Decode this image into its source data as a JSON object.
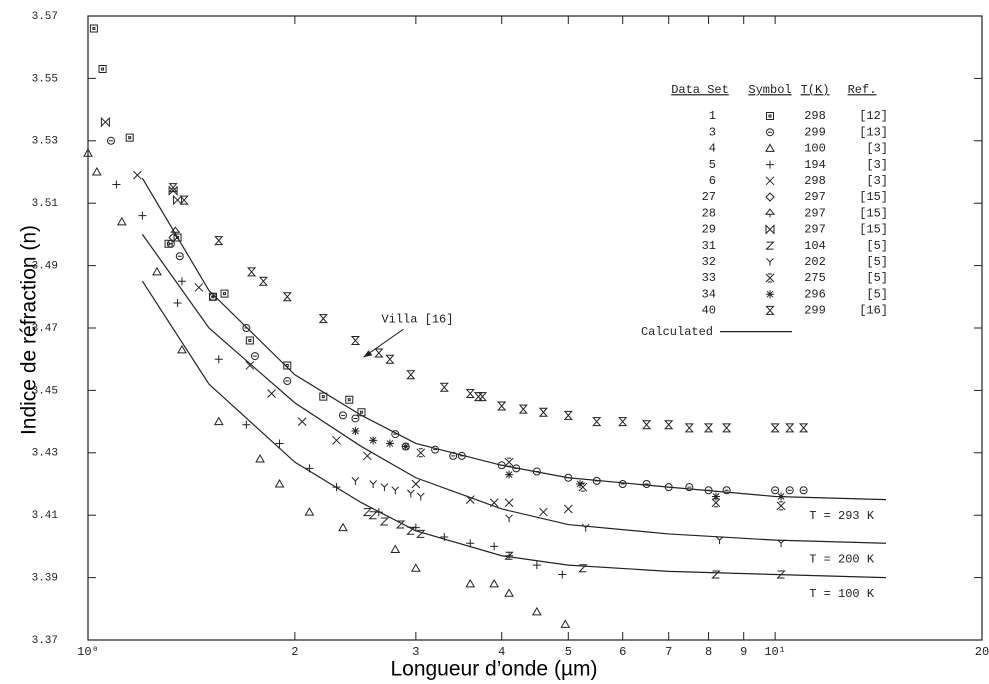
{
  "chart_data": {
    "type": "scatter",
    "x_label": "Longueur d’onde (µm)",
    "y_label": "Indice de réfraction (n)",
    "xlog": true,
    "xlim": [
      1,
      20
    ],
    "ylim": [
      3.37,
      3.57
    ],
    "xticks": [
      {
        "value": 1,
        "label": "10⁰"
      },
      2,
      3,
      4,
      5,
      6,
      7,
      8,
      9,
      {
        "value": 10,
        "label": "10¹"
      },
      20
    ],
    "yticks": [
      3.37,
      3.39,
      3.41,
      3.43,
      3.45,
      3.47,
      3.49,
      3.51,
      3.53,
      3.55,
      3.57
    ],
    "legend_headers": [
      "Data Set",
      "Symbol",
      "T(K)",
      "Ref."
    ],
    "series": [
      {
        "name": "1",
        "marker": "square",
        "T": 298,
        "ref": "[12]",
        "x": [
          1.02,
          1.05,
          1.15,
          1.31,
          1.35,
          1.52,
          1.58,
          1.72,
          1.95,
          2.2,
          2.4,
          2.5
        ],
        "values": [
          3.566,
          3.553,
          3.531,
          3.497,
          3.499,
          3.48,
          3.481,
          3.466,
          3.458,
          3.448,
          3.447,
          3.443
        ]
      },
      {
        "name": "3",
        "marker": "circle",
        "T": 299,
        "ref": "[13]",
        "x": [
          1.08,
          1.32,
          1.36,
          1.52,
          1.7,
          1.75,
          1.95,
          2.35,
          2.45,
          2.8,
          2.9,
          3.2,
          3.4,
          3.5,
          4.0,
          4.2,
          4.5,
          5.0,
          5.5,
          6.0,
          6.5,
          7.0,
          7.5,
          8.0,
          8.5,
          10,
          10.5,
          11
        ],
        "values": [
          3.53,
          3.497,
          3.493,
          3.48,
          3.47,
          3.461,
          3.453,
          3.442,
          3.441,
          3.436,
          3.432,
          3.431,
          3.429,
          3.429,
          3.426,
          3.425,
          3.424,
          3.422,
          3.421,
          3.42,
          3.42,
          3.419,
          3.419,
          3.418,
          3.418,
          3.418,
          3.418,
          3.418
        ]
      },
      {
        "name": "4",
        "marker": "triangle",
        "T": 100,
        "ref": "[3]",
        "x": [
          1.0,
          1.03,
          1.12,
          1.26,
          1.37,
          1.55,
          1.78,
          1.9,
          2.1,
          2.35,
          2.8,
          3.0,
          3.6,
          3.9,
          4.1,
          4.5,
          4.95
        ],
        "values": [
          3.526,
          3.52,
          3.504,
          3.488,
          3.463,
          3.44,
          3.428,
          3.42,
          3.411,
          3.406,
          3.399,
          3.393,
          3.388,
          3.388,
          3.385,
          3.379,
          3.375
        ]
      },
      {
        "name": "5",
        "marker": "plus",
        "T": 194,
        "ref": "[3]",
        "x": [
          1.1,
          1.2,
          1.35,
          1.37,
          1.55,
          1.7,
          1.9,
          2.1,
          2.3,
          2.65,
          3.0,
          3.3,
          3.6,
          3.9,
          4.1,
          4.5,
          4.9
        ],
        "values": [
          3.516,
          3.506,
          3.478,
          3.485,
          3.46,
          3.439,
          3.433,
          3.425,
          3.419,
          3.411,
          3.406,
          3.403,
          3.401,
          3.4,
          3.397,
          3.394,
          3.391
        ]
      },
      {
        "name": "6",
        "marker": "cross",
        "T": 298,
        "ref": "[3]",
        "x": [
          1.18,
          1.45,
          1.72,
          1.85,
          2.05,
          2.3,
          2.55,
          3.0,
          3.6,
          3.9,
          4.1,
          4.6,
          5.0
        ],
        "values": [
          3.519,
          3.483,
          3.458,
          3.449,
          3.44,
          3.434,
          3.429,
          3.42,
          3.415,
          3.414,
          3.414,
          3.411,
          3.412
        ]
      },
      {
        "name": "27",
        "marker": "diamond",
        "T": 297,
        "ref": "[15]",
        "x": [
          1.33
        ],
        "values": [
          3.499
        ]
      },
      {
        "name": "28",
        "marker": "spade",
        "T": 297,
        "ref": "[15]",
        "x": [
          1.34
        ],
        "values": [
          3.501
        ]
      },
      {
        "name": "29",
        "marker": "bowtie",
        "T": 297,
        "ref": "[15]",
        "x": [
          1.06,
          1.33,
          1.35
        ],
        "values": [
          3.536,
          3.514,
          3.511
        ]
      },
      {
        "name": "31",
        "marker": "z",
        "T": 104,
        "ref": "[5]",
        "x": [
          2.55,
          2.6,
          2.7,
          2.85,
          2.95,
          3.05,
          4.1,
          5.25,
          8.2,
          10.2
        ],
        "values": [
          3.411,
          3.41,
          3.408,
          3.407,
          3.405,
          3.404,
          3.397,
          3.393,
          3.391,
          3.391
        ]
      },
      {
        "name": "32",
        "marker": "y",
        "T": 202,
        "ref": "[5]",
        "x": [
          2.45,
          2.6,
          2.7,
          2.8,
          2.95,
          3.05,
          4.1,
          5.3,
          8.3,
          10.2
        ],
        "values": [
          3.421,
          3.42,
          3.419,
          3.418,
          3.417,
          3.416,
          3.409,
          3.406,
          3.402,
          3.401
        ]
      },
      {
        "name": "33",
        "marker": "star",
        "T": 275,
        "ref": "[5]",
        "x": [
          3.05,
          4.1,
          5.25,
          8.2,
          10.2
        ],
        "values": [
          3.43,
          3.427,
          3.419,
          3.414,
          3.413
        ]
      },
      {
        "name": "34",
        "marker": "asterisk",
        "T": 296,
        "ref": "[5]",
        "x": [
          2.45,
          2.6,
          2.75,
          2.9,
          4.1,
          5.2,
          8.2,
          10.2
        ],
        "values": [
          3.437,
          3.434,
          3.433,
          3.432,
          3.423,
          3.42,
          3.416,
          3.416
        ]
      },
      {
        "name": "40",
        "marker": "hourglass",
        "T": 299,
        "ref": "[16]",
        "x": [
          1.33,
          1.38,
          1.55,
          1.73,
          1.8,
          1.95,
          2.2,
          2.45,
          2.65,
          2.75,
          2.95,
          3.3,
          3.6,
          3.7,
          3.75,
          4.0,
          4.3,
          4.6,
          5.0,
          5.5,
          6.0,
          6.5,
          7.0,
          7.5,
          8.0,
          8.5,
          10.0,
          10.5,
          11.0
        ],
        "values": [
          3.515,
          3.511,
          3.498,
          3.488,
          3.485,
          3.48,
          3.473,
          3.466,
          3.462,
          3.46,
          3.455,
          3.451,
          3.449,
          3.448,
          3.448,
          3.445,
          3.444,
          3.443,
          3.442,
          3.44,
          3.44,
          3.439,
          3.439,
          3.438,
          3.438,
          3.438,
          3.438,
          3.438,
          3.438
        ]
      }
    ],
    "calculated_label": "Calculated",
    "curves": [
      {
        "name": "T = 293 K",
        "x": [
          1.2,
          1.5,
          2,
          2.5,
          3,
          4,
          5,
          7,
          10,
          14.5
        ],
        "values": [
          3.518,
          3.482,
          3.455,
          3.442,
          3.433,
          3.426,
          3.422,
          3.419,
          3.416,
          3.415
        ]
      },
      {
        "name": "T = 200 K",
        "x": [
          1.2,
          1.5,
          2,
          2.5,
          3,
          4,
          5,
          7,
          10,
          14.5
        ],
        "values": [
          3.5,
          3.47,
          3.446,
          3.432,
          3.422,
          3.412,
          3.407,
          3.404,
          3.402,
          3.401
        ]
      },
      {
        "name": "T = 100 K",
        "x": [
          1.2,
          1.5,
          2,
          2.5,
          3,
          4,
          5,
          7,
          10,
          14.5
        ],
        "values": [
          3.485,
          3.452,
          3.427,
          3.414,
          3.405,
          3.397,
          3.394,
          3.392,
          3.391,
          3.39
        ]
      }
    ],
    "annotation": {
      "text": "Villa [16]",
      "x": 2.5,
      "y": 3.46
    }
  }
}
